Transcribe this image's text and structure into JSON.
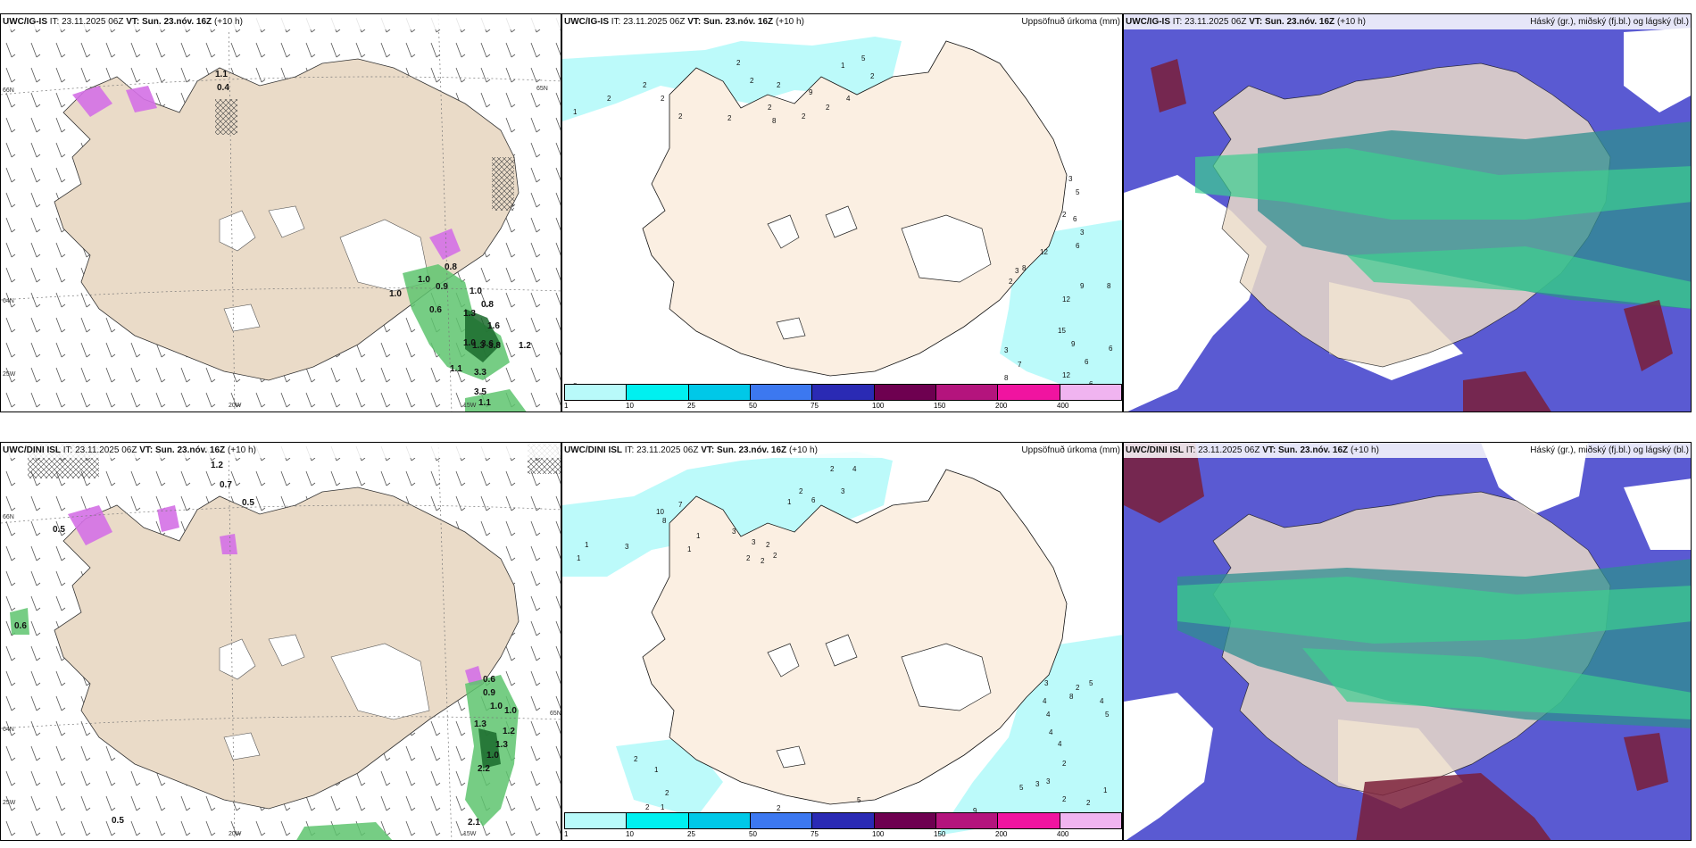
{
  "top": {
    "wind": {
      "model": "UWC/IG-IS",
      "it": "IT: 23.11.2025 06Z",
      "vt": "VT: Sun. 23.nóv. 16Z",
      "lead": "(+10 h)",
      "lat_labels": [
        "66N",
        "65N",
        "64N"
      ],
      "lon_labels": [
        "20W",
        "15W"
      ],
      "edge_label": "25W",
      "values": [
        "1.1",
        "0.4",
        "0.8",
        "1.0",
        "0.9",
        "1.0",
        "1.0",
        "0.8",
        "1.3",
        "0.6",
        "1.6",
        "1.0",
        "3.6",
        "1.3",
        "3.8",
        "1.2",
        "1.1",
        "3.3",
        "3.5",
        "1.1"
      ]
    },
    "precip": {
      "model": "UWC/IG-IS",
      "it": "IT: 23.11.2025 06Z",
      "vt": "VT: Sun. 23.nóv. 16Z",
      "lead": "(+10 h)",
      "title": "Uppsöfnuð úrkoma (mm)",
      "numbers": [
        "1",
        "2",
        "2",
        "5",
        "2",
        "2",
        "2",
        "2",
        "2",
        "2",
        "2",
        "2",
        "9",
        "1",
        "2",
        "8",
        "2",
        "4",
        "3",
        "5",
        "2",
        "8",
        "3",
        "2",
        "6",
        "3",
        "6",
        "12",
        "9",
        "8",
        "12",
        "15",
        "9",
        "6",
        "7",
        "3",
        "6",
        "8",
        "15",
        "12",
        "4",
        "6",
        "8",
        "1",
        "3"
      ]
    },
    "cloud": {
      "model": "UWC/IG-IS",
      "it": "IT: 23.11.2025 06Z",
      "vt": "VT: Sun. 23.nóv. 16Z",
      "lead": "(+10 h)",
      "title": "Háský (gr.), miðský (fj.bl.) og lágský (bl.)"
    }
  },
  "bottom": {
    "wind": {
      "model": "UWC/DINI ISL",
      "it": "IT: 23.11.2025 06Z",
      "vt": "VT: Sun. 23.nóv. 16Z",
      "lead": "(+10 h)",
      "lat_labels": [
        "66N",
        "65N",
        "64N"
      ],
      "lon_labels": [
        "20W",
        "15W"
      ],
      "edge_label": "25W",
      "values": [
        "1.2",
        "0.7",
        "0.5",
        "0.6",
        "0.5",
        "0.6",
        "0.9",
        "1.0",
        "1.0",
        "1.3",
        "1.2",
        "1.3",
        "1.0",
        "2.2",
        "0.5",
        "2.1"
      ]
    },
    "precip": {
      "model": "UWC/DINI ISL",
      "it": "IT: 23.11.2025 06Z",
      "vt": "VT: Sun. 23.nóv. 16Z",
      "lead": "(+10 h)",
      "title": "Uppsöfnuð úrkoma (mm)",
      "numbers": [
        "2",
        "4",
        "3",
        "2",
        "1",
        "6",
        "1",
        "7",
        "10",
        "8",
        "1",
        "1",
        "3",
        "1",
        "3",
        "3",
        "2",
        "2",
        "2",
        "2",
        "3",
        "5",
        "2",
        "8",
        "4",
        "5",
        "4",
        "4",
        "4",
        "4",
        "2",
        "3",
        "2",
        "1",
        "2",
        "2",
        "2",
        "5",
        "3",
        "2",
        "9",
        "1",
        "5",
        "2",
        "1"
      ]
    },
    "cloud": {
      "model": "UWC/DINI ISL",
      "it": "IT: 23.11.2025 06Z",
      "vt": "VT: Sun. 23.nóv. 16Z",
      "lead": "(+10 h)",
      "title": "Háský (gr.), miðský (fj.bl.) og lágský (bl.)"
    }
  },
  "legend": {
    "ticks": [
      "1",
      "10",
      "25",
      "50",
      "75",
      "100",
      "150",
      "200",
      "400"
    ],
    "colors": [
      "#b8fafa",
      "#00f0f0",
      "#00c8e8",
      "#3c78f0",
      "#2a2ab4",
      "#6e0050",
      "#b4147d",
      "#f014a0",
      "#f0b4f0"
    ]
  },
  "colors": {
    "land": "#eadbc8",
    "precip_land": "#fbefe2",
    "snow": "#d470e6",
    "rain_green": "#5ec46e",
    "low_cloud": "#5a5ad2",
    "mid_cloud": "#2f8f8f",
    "high_cloud": "#3ccf8e"
  }
}
